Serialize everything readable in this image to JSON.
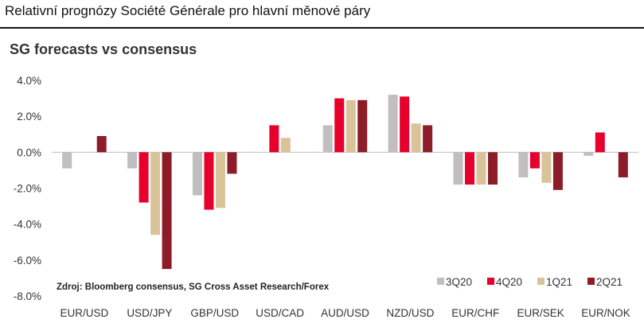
{
  "header": {
    "title": "Relativní prognózy Société Générale pro hlavní měnové páry"
  },
  "chart_data": {
    "type": "bar",
    "title": "SG forecasts vs consensus",
    "xlabel": "",
    "ylabel": "",
    "ylim": [
      -8,
      4
    ],
    "yticks": [
      "4.0%",
      "2.0%",
      "0.0%",
      "-2.0%",
      "-4.0%",
      "-6.0%",
      "-8.0%"
    ],
    "grid": false,
    "legend_position": "bottom-right",
    "categories": [
      "EUR/USD",
      "USD/JPY",
      "GBP/USD",
      "USD/CAD",
      "AUD/USD",
      "NZD/USD",
      "EUR/CHF",
      "EUR/SEK",
      "EUR/NOK"
    ],
    "series": [
      {
        "name": "3Q20",
        "color": "#c0bebf",
        "values": [
          -0.9,
          -0.9,
          -2.4,
          0.0,
          1.5,
          3.2,
          -1.8,
          -1.4,
          -0.2
        ]
      },
      {
        "name": "4Q20",
        "color": "#e8002d",
        "values": [
          0.0,
          -2.8,
          -3.2,
          1.5,
          3.0,
          3.1,
          -1.8,
          -0.9,
          1.1
        ]
      },
      {
        "name": "1Q21",
        "color": "#d9c49a",
        "values": [
          0.0,
          -4.6,
          -3.1,
          0.8,
          2.9,
          1.6,
          -1.8,
          -1.7,
          0.0
        ]
      },
      {
        "name": "2Q21",
        "color": "#8b1c28",
        "values": [
          0.9,
          -6.5,
          -1.2,
          0.0,
          2.9,
          1.5,
          -1.8,
          -2.1,
          -1.4
        ]
      }
    ],
    "source_note": "Zdroj: Bloomberg consensus, SG Cross Asset Research/Forex"
  }
}
